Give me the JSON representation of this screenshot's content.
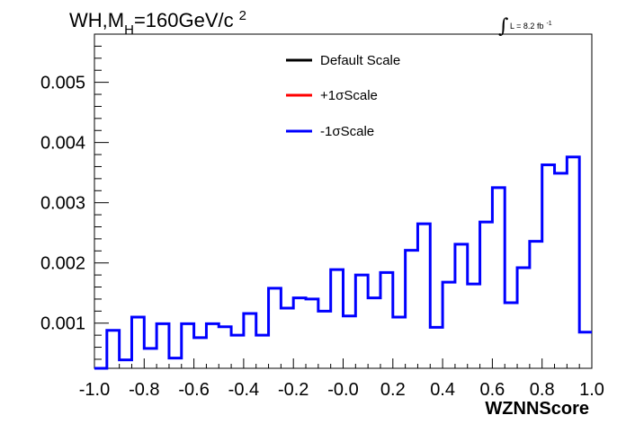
{
  "chart_data": {
    "type": "histogram-step",
    "title_parts": {
      "main": "WH,M",
      "sub": "H",
      "rest": "=160GeV/c",
      "sup": "2"
    },
    "luminosity": {
      "symbol": "∫",
      "text": "L = 8.2 fb",
      "sup": "-1"
    },
    "xlabel": "WZNNScore",
    "ylabel": "",
    "xlim": [
      -1.0,
      1.0
    ],
    "ylim": [
      0.00025,
      0.0058
    ],
    "x_ticks": [
      "-1.0",
      "-0.8",
      "-0.6",
      "-0.4",
      "-0.2",
      "-0.0",
      "0.2",
      "0.4",
      "0.6",
      "0.8",
      "1.0"
    ],
    "y_ticks": [
      "0.001",
      "0.002",
      "0.003",
      "0.004",
      "0.005"
    ],
    "bin_edges_start": -1.0,
    "bin_width": 0.05,
    "legend": [
      {
        "name": "Default Scale",
        "color": "#000000"
      },
      {
        "name": "+1σScale",
        "color": "#ff0000"
      },
      {
        "name": "-1σScale",
        "color": "#0000ff"
      }
    ],
    "series": [
      {
        "name": "-1σScale",
        "color": "#0000ff",
        "values": [
          0.00025,
          0.00088,
          0.00039,
          0.0011,
          0.00058,
          0.00099,
          0.00042,
          0.00099,
          0.00076,
          0.00099,
          0.00094,
          0.0008,
          0.00116,
          0.0008,
          0.00158,
          0.00125,
          0.00142,
          0.0014,
          0.0012,
          0.00189,
          0.00112,
          0.0018,
          0.00142,
          0.00184,
          0.0011,
          0.00221,
          0.00265,
          0.00093,
          0.00168,
          0.00231,
          0.00165,
          0.00268,
          0.00325,
          0.00134,
          0.00192,
          0.00236,
          0.00363,
          0.00349,
          0.00376,
          0.00085
        ]
      }
    ]
  }
}
